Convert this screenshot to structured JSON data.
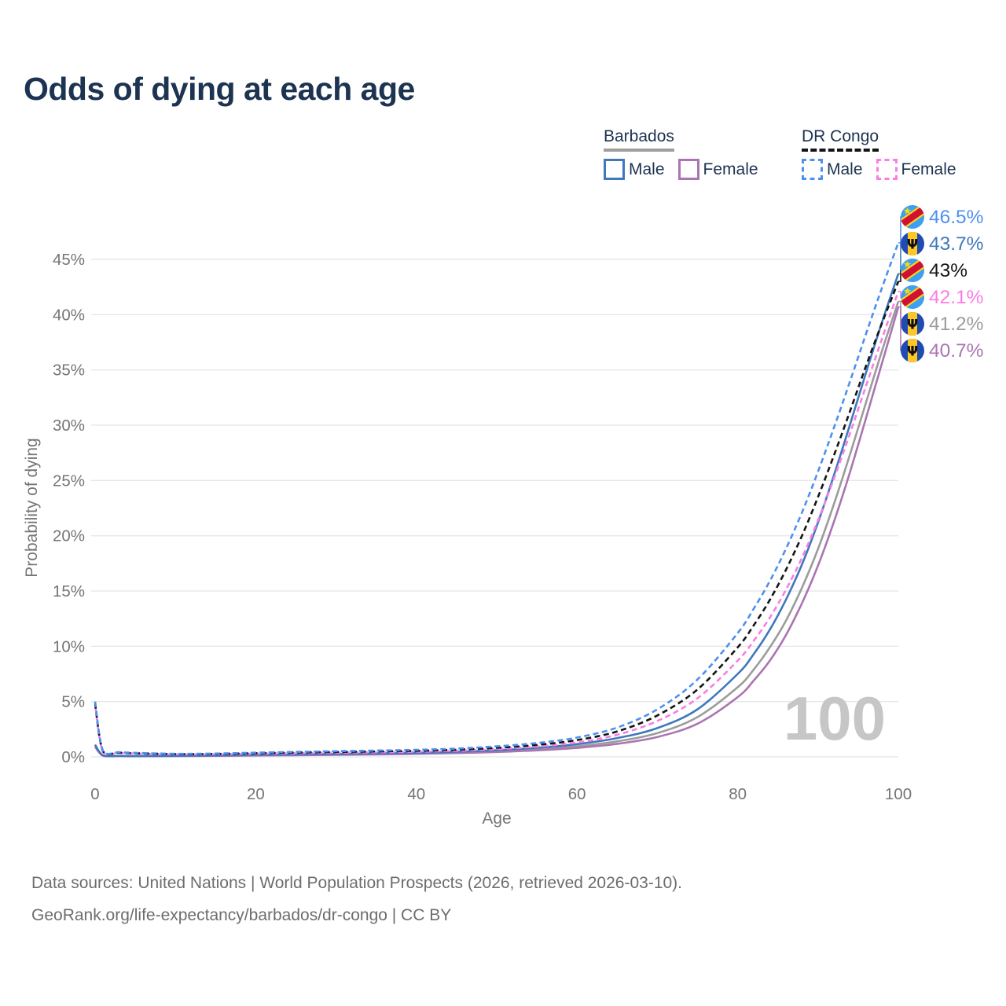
{
  "page": {
    "title": "Odds of dying at each age",
    "watermark_age": "100"
  },
  "legend": {
    "groups": [
      {
        "label": "Barbados",
        "line_style": "solid",
        "underline_color": "#9e9e9e",
        "items": [
          {
            "label": "Male",
            "color": "#3f78bc"
          },
          {
            "label": "Female",
            "color": "#ab74b2"
          }
        ]
      },
      {
        "label": "DR Congo",
        "line_style": "dashed",
        "underline_color": "#141414",
        "items": [
          {
            "label": "Male",
            "color": "#4e90f0"
          },
          {
            "label": "Female",
            "color": "#fb7ce4"
          }
        ]
      }
    ]
  },
  "chart_data": {
    "type": "line",
    "title": "Odds of dying at each age",
    "xlabel": "Age",
    "ylabel": "Probability of dying",
    "xlim": [
      0,
      100
    ],
    "ylim": [
      0,
      47
    ],
    "x_ticks": [
      0,
      20,
      40,
      60,
      80,
      100
    ],
    "y_ticks": [
      0,
      5,
      10,
      15,
      20,
      25,
      30,
      35,
      40,
      45
    ],
    "y_tick_suffix": "%",
    "grid": "horizontal",
    "legend_position": "top-right",
    "hover_age": "100",
    "x": [
      0,
      1,
      3,
      5,
      10,
      15,
      20,
      25,
      30,
      35,
      40,
      45,
      50,
      55,
      60,
      65,
      70,
      75,
      80,
      82,
      84,
      86,
      88,
      90,
      92,
      94,
      96,
      98,
      100
    ],
    "series": [
      {
        "name": "DR Congo Male",
        "country": "dr-congo",
        "sex": "male",
        "color": "#4e90f0",
        "dashed": true,
        "flag": "dr-congo",
        "end_label": "46.5%",
        "values": [
          5.0,
          0.52,
          0.42,
          0.36,
          0.28,
          0.3,
          0.38,
          0.45,
          0.51,
          0.57,
          0.64,
          0.75,
          0.95,
          1.25,
          1.75,
          2.65,
          4.3,
          7.0,
          11.2,
          13.4,
          15.9,
          18.8,
          22.1,
          25.8,
          29.8,
          34.0,
          38.3,
          42.5,
          46.5
        ]
      },
      {
        "name": "Barbados Male",
        "country": "barbados",
        "sex": "male",
        "color": "#3f78bc",
        "dashed": false,
        "flag": "barbados",
        "end_label": "43.7%",
        "values": [
          1.1,
          0.13,
          0.09,
          0.08,
          0.09,
          0.13,
          0.18,
          0.22,
          0.26,
          0.31,
          0.37,
          0.46,
          0.6,
          0.82,
          1.15,
          1.7,
          2.6,
          4.3,
          7.5,
          9.3,
          11.5,
          14.2,
          17.4,
          21.2,
          25.5,
          30.1,
          34.8,
          39.4,
          43.7
        ]
      },
      {
        "name": "DR Congo Total",
        "country": "dr-congo",
        "sex": "total",
        "color": "#151515",
        "dashed": true,
        "flag": "dr-congo",
        "end_label": "43%",
        "values": [
          4.85,
          0.48,
          0.38,
          0.33,
          0.25,
          0.26,
          0.33,
          0.39,
          0.44,
          0.49,
          0.55,
          0.65,
          0.82,
          1.08,
          1.52,
          2.3,
          3.75,
          6.1,
          9.9,
          11.9,
          14.2,
          16.9,
          20.0,
          23.5,
          27.3,
          31.3,
          35.4,
          39.3,
          43.0
        ]
      },
      {
        "name": "DR Congo Female",
        "country": "dr-congo",
        "sex": "female",
        "color": "#fb7ce4",
        "dashed": true,
        "flag": "dr-congo",
        "end_label": "42.1%",
        "values": [
          4.65,
          0.44,
          0.35,
          0.3,
          0.23,
          0.23,
          0.28,
          0.33,
          0.37,
          0.41,
          0.46,
          0.55,
          0.7,
          0.93,
          1.3,
          2.0,
          3.25,
          5.3,
          8.7,
          10.5,
          12.6,
          15.1,
          18.0,
          21.4,
          25.2,
          29.3,
          33.6,
          37.9,
          42.1
        ]
      },
      {
        "name": "Barbados Total",
        "country": "barbados",
        "sex": "total",
        "color": "#9c9c9c",
        "dashed": false,
        "flag": "barbados",
        "end_label": "41.2%",
        "values": [
          1.0,
          0.12,
          0.08,
          0.07,
          0.08,
          0.11,
          0.15,
          0.18,
          0.22,
          0.26,
          0.31,
          0.39,
          0.51,
          0.69,
          0.96,
          1.4,
          2.15,
          3.6,
          6.3,
          7.9,
          9.9,
          12.3,
          15.3,
          18.8,
          22.9,
          27.4,
          32.1,
          36.8,
          41.2
        ]
      },
      {
        "name": "Barbados Female",
        "country": "barbados",
        "sex": "female",
        "color": "#ab74b2",
        "dashed": false,
        "flag": "barbados",
        "end_label": "40.7%",
        "values": [
          0.9,
          0.11,
          0.07,
          0.06,
          0.07,
          0.09,
          0.12,
          0.15,
          0.18,
          0.22,
          0.27,
          0.34,
          0.44,
          0.59,
          0.81,
          1.18,
          1.8,
          3.0,
          5.4,
          6.9,
          8.7,
          11.0,
          13.9,
          17.3,
          21.3,
          25.8,
          30.7,
          35.7,
          40.7
        ]
      }
    ]
  },
  "footer": {
    "line1": "Data sources: United Nations | World Population Prospects (2026, retrieved 2026-03-10).",
    "line2": "GeoRank.org/life-expectancy/barbados/dr-congo | CC BY"
  }
}
